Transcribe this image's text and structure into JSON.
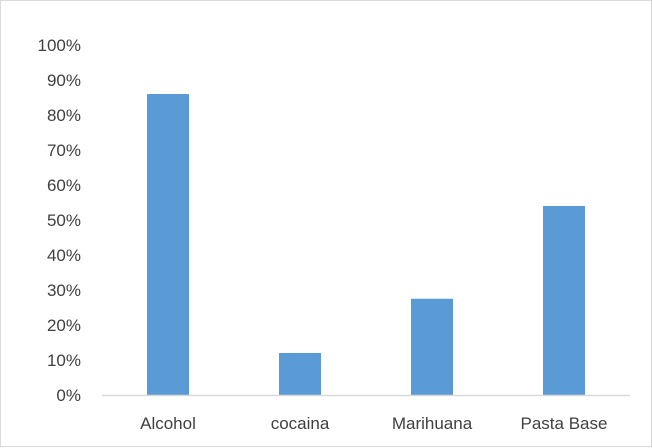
{
  "chart_data": {
    "type": "bar",
    "categories": [
      "Alcohol",
      "cocaina",
      "Marihuana",
      "Pasta Base"
    ],
    "values": [
      0.86,
      0.12,
      0.275,
      0.54
    ],
    "ylim": [
      0,
      1
    ],
    "yticks": [
      "0%",
      "10%",
      "20%",
      "30%",
      "40%",
      "50%",
      "60%",
      "70%",
      "80%",
      "90%",
      "100%"
    ],
    "bar_color": "#5b9bd5",
    "axis_color": "#d9d9d9",
    "grid": false,
    "legend": "none"
  }
}
